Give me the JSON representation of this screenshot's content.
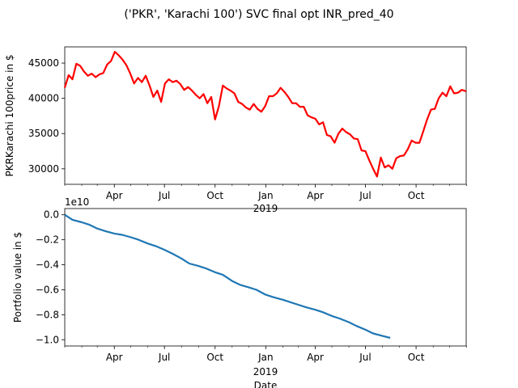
{
  "figure_title": "('PKR', 'Karachi 100') SVC final opt INR_pred_40",
  "chart_data": [
    {
      "type": "line",
      "ylabel": "PKRKarachi 100price in $",
      "xlabel": "",
      "x_tick_labels": [
        "Apr",
        "Jul",
        "Oct",
        "Jan",
        "Apr",
        "Jul",
        "Oct"
      ],
      "x_year_label": "2019",
      "x_range": [
        "2018-01-01",
        "2019-12-31"
      ],
      "ylim": [
        27800,
        47300
      ],
      "y_ticks": [
        30000,
        35000,
        40000,
        45000
      ],
      "y_tick_labels": [
        "30000",
        "35000",
        "40000",
        "45000"
      ],
      "color": "#ff0000",
      "series": [
        {
          "x": [
            "2018-01-01",
            "2018-01-08",
            "2018-01-15",
            "2018-01-22",
            "2018-01-29",
            "2018-02-05",
            "2018-02-12",
            "2018-02-19",
            "2018-02-26",
            "2018-03-05",
            "2018-03-12",
            "2018-03-19",
            "2018-03-26",
            "2018-04-02",
            "2018-04-09",
            "2018-04-16",
            "2018-04-23",
            "2018-04-30",
            "2018-05-07",
            "2018-05-14",
            "2018-05-21",
            "2018-05-28",
            "2018-06-04",
            "2018-06-11",
            "2018-06-18",
            "2018-06-25",
            "2018-07-02",
            "2018-07-09",
            "2018-07-16",
            "2018-07-23",
            "2018-07-30",
            "2018-08-06",
            "2018-08-13",
            "2018-08-20",
            "2018-08-27",
            "2018-09-03",
            "2018-09-10",
            "2018-09-17",
            "2018-09-24",
            "2018-10-01",
            "2018-10-08",
            "2018-10-15",
            "2018-10-22",
            "2018-10-29",
            "2018-11-05",
            "2018-11-12",
            "2018-11-19",
            "2018-11-26",
            "2018-12-03",
            "2018-12-10",
            "2018-12-17",
            "2018-12-24",
            "2018-12-31",
            "2019-01-07",
            "2019-01-14",
            "2019-01-21",
            "2019-01-28",
            "2019-02-04",
            "2019-02-11",
            "2019-02-18",
            "2019-02-25",
            "2019-03-04",
            "2019-03-11",
            "2019-03-18",
            "2019-03-25",
            "2019-04-01",
            "2019-04-08",
            "2019-04-15",
            "2019-04-22",
            "2019-04-29",
            "2019-05-06",
            "2019-05-13",
            "2019-05-20",
            "2019-05-27",
            "2019-06-03",
            "2019-06-10",
            "2019-06-17",
            "2019-06-24",
            "2019-07-01",
            "2019-07-08",
            "2019-07-15",
            "2019-07-22",
            "2019-07-29",
            "2019-08-05",
            "2019-08-12",
            "2019-08-19",
            "2019-08-26",
            "2019-09-02",
            "2019-09-09",
            "2019-09-16",
            "2019-09-23",
            "2019-09-30",
            "2019-10-07",
            "2019-10-14",
            "2019-10-21",
            "2019-10-28",
            "2019-11-04",
            "2019-11-11",
            "2019-11-18",
            "2019-11-25",
            "2019-12-02",
            "2019-12-09",
            "2019-12-16",
            "2019-12-23",
            "2019-12-31"
          ],
          "values": [
            41500,
            43300,
            42700,
            44900,
            44600,
            43800,
            43200,
            43500,
            43000,
            43400,
            43600,
            44800,
            45300,
            46600,
            46100,
            45500,
            44700,
            43500,
            42100,
            42900,
            42300,
            43200,
            41800,
            40200,
            41100,
            39500,
            42100,
            42700,
            42300,
            42500,
            42000,
            41200,
            41600,
            41100,
            40500,
            40000,
            40600,
            39300,
            40200,
            37000,
            38900,
            41800,
            41400,
            41100,
            40700,
            39500,
            39200,
            38700,
            38400,
            39200,
            38500,
            38100,
            38900,
            40300,
            40300,
            40700,
            41500,
            40900,
            40200,
            39300,
            39300,
            38800,
            38800,
            37600,
            37300,
            37100,
            36300,
            36600,
            34800,
            34600,
            33700,
            35000,
            35700,
            35200,
            34900,
            34300,
            34200,
            32600,
            32500,
            31200,
            30000,
            28900,
            31600,
            30200,
            30500,
            30000,
            31500,
            31800,
            31900,
            32800,
            34000,
            33700,
            33700,
            35300,
            37000,
            38400,
            38500,
            40000,
            40800,
            40300,
            41700,
            40700,
            40800,
            41200,
            41000
          ]
        }
      ]
    },
    {
      "type": "line",
      "ylabel": "Portfolio value in $",
      "xlabel": "Date",
      "x_tick_labels": [
        "Apr",
        "Jul",
        "Oct",
        "Jan",
        "Apr",
        "Jul",
        "Oct"
      ],
      "x_year_label": "2019",
      "x_range": [
        "2018-01-01",
        "2019-12-31"
      ],
      "y_offset_label": "1e10",
      "ylim": [
        -1.05,
        0.05
      ],
      "y_ticks": [
        0.0,
        -0.2,
        -0.4,
        -0.6,
        -0.8,
        -1.0
      ],
      "y_tick_labels": [
        "0.0",
        "−0.2",
        "−0.4",
        "−0.6",
        "−0.8",
        "−1.0"
      ],
      "color": "#1f77b4",
      "series": [
        {
          "x": [
            "2018-01-01",
            "2018-01-15",
            "2018-02-01",
            "2018-02-15",
            "2018-03-01",
            "2018-03-15",
            "2018-04-01",
            "2018-04-15",
            "2018-05-01",
            "2018-05-15",
            "2018-06-01",
            "2018-06-15",
            "2018-07-01",
            "2018-07-15",
            "2018-08-01",
            "2018-08-15",
            "2018-09-01",
            "2018-09-15",
            "2018-10-01",
            "2018-10-15",
            "2018-11-01",
            "2018-11-15",
            "2018-12-01",
            "2018-12-15",
            "2019-01-01",
            "2019-01-15",
            "2019-02-01",
            "2019-02-15",
            "2019-03-01",
            "2019-03-15",
            "2019-04-01",
            "2019-04-15",
            "2019-05-01",
            "2019-05-15",
            "2019-06-01",
            "2019-06-15",
            "2019-07-01",
            "2019-07-15",
            "2019-08-01",
            "2019-08-15"
          ],
          "values": [
            0.0,
            -0.04,
            -0.06,
            -0.08,
            -0.11,
            -0.13,
            -0.15,
            -0.16,
            -0.18,
            -0.2,
            -0.23,
            -0.25,
            -0.28,
            -0.31,
            -0.35,
            -0.39,
            -0.41,
            -0.43,
            -0.46,
            -0.48,
            -0.53,
            -0.56,
            -0.58,
            -0.6,
            -0.64,
            -0.66,
            -0.68,
            -0.7,
            -0.72,
            -0.74,
            -0.76,
            -0.78,
            -0.81,
            -0.83,
            -0.86,
            -0.89,
            -0.92,
            -0.95,
            -0.97,
            -0.985
          ]
        }
      ]
    }
  ]
}
